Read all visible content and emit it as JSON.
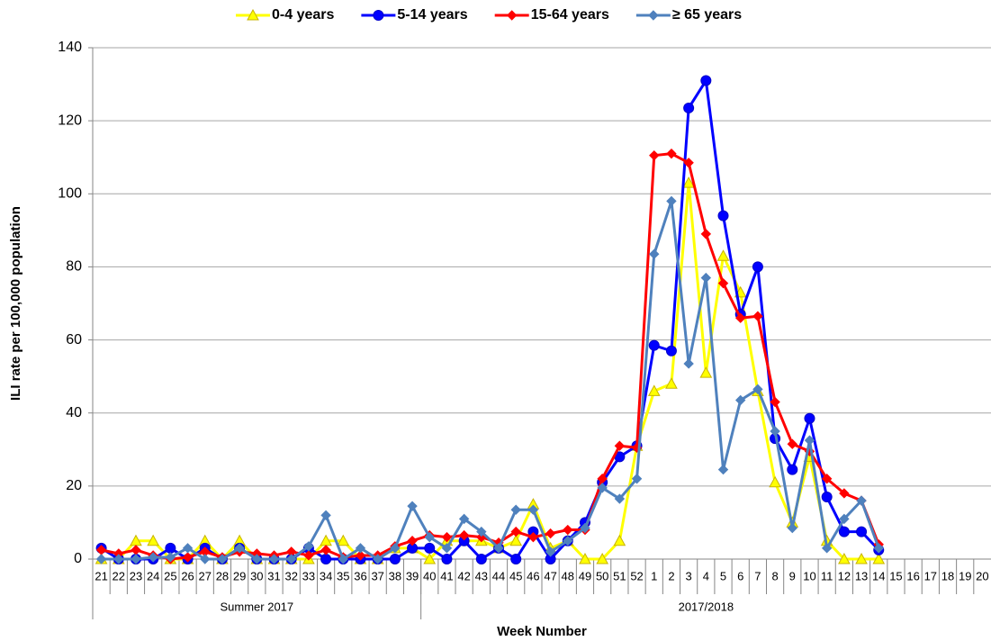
{
  "chart_data": {
    "type": "line",
    "y_label": "ILI rate per 100,000 population",
    "x_label": "Week Number",
    "category_groups": [
      {
        "label": "Summer 2017",
        "categories": [
          "21",
          "22",
          "23",
          "24",
          "25",
          "26",
          "27",
          "28",
          "29",
          "30",
          "31",
          "32",
          "33",
          "34",
          "35",
          "36",
          "37",
          "38",
          "39"
        ]
      },
      {
        "label": "2017/2018",
        "categories": [
          "40",
          "41",
          "42",
          "43",
          "44",
          "45",
          "46",
          "47",
          "48",
          "49",
          "50",
          "51",
          "52",
          "1",
          "2",
          "3",
          "4",
          "5",
          "6",
          "7",
          "8",
          "9",
          "10",
          "11",
          "12",
          "13",
          "14",
          "15",
          "16",
          "17",
          "18",
          "19",
          "20"
        ]
      }
    ],
    "ylim": [
      0,
      140
    ],
    "yticks": [
      0,
      20,
      40,
      60,
      80,
      100,
      120,
      140
    ],
    "grid": true,
    "legend": "top",
    "series": [
      {
        "name": "0-4 years",
        "color": "#ffff00",
        "marker_edge": "#c8b400",
        "marker": "triangle",
        "values": [
          0,
          0,
          5,
          5,
          0,
          0,
          5,
          0,
          5,
          0,
          0,
          0,
          0,
          5,
          5,
          0,
          0,
          3,
          3,
          0,
          5,
          5,
          5,
          3,
          5,
          15,
          3,
          5,
          0,
          0,
          5,
          31,
          46,
          48,
          103,
          51,
          83,
          73,
          46,
          21,
          10,
          28,
          5,
          0,
          0,
          0,
          null,
          null,
          null,
          null,
          null,
          null
        ]
      },
      {
        "name": "5-14 years",
        "color": "#0000ff",
        "marker_edge": "#0000cc",
        "marker": "circle",
        "values": [
          3,
          0,
          0,
          0,
          3,
          0,
          3,
          0,
          3,
          0,
          0,
          0,
          3,
          0,
          0,
          0,
          0,
          0,
          3,
          3,
          0,
          5,
          0,
          3,
          0,
          7.5,
          0,
          5,
          10,
          21,
          28,
          31,
          58.5,
          57,
          123.5,
          131,
          94,
          67,
          80,
          33,
          24.5,
          38.5,
          17,
          7.5,
          7.5,
          2.5,
          null,
          null,
          null,
          null,
          null,
          null
        ]
      },
      {
        "name": "15-64 years",
        "color": "#ff0000",
        "marker_edge": "#ff0000",
        "marker": "diamond",
        "values": [
          2.5,
          1.5,
          2.5,
          1,
          0,
          0.5,
          2,
          0.5,
          2,
          1.5,
          1,
          2,
          1,
          2.5,
          0.5,
          1,
          1,
          3.5,
          5,
          6.5,
          6,
          6.5,
          6,
          4.5,
          7.5,
          6,
          7,
          8,
          8,
          22,
          31,
          30.5,
          110.5,
          111,
          108.5,
          89,
          75.5,
          66,
          66.5,
          43,
          31.5,
          29.5,
          22,
          18,
          16,
          4,
          null,
          null,
          null,
          null,
          null,
          null
        ]
      },
      {
        "name": "≥ 65 years",
        "color": "#4f81bd",
        "marker_edge": "#4f81bd",
        "marker": "diamond",
        "values": [
          0,
          0,
          0,
          0.5,
          0.5,
          3,
          0,
          0,
          3,
          0,
          0,
          0,
          3.5,
          12,
          0,
          3,
          0,
          3,
          14.5,
          6,
          3,
          11,
          7.5,
          3,
          13.5,
          13.5,
          2,
          5,
          8.5,
          19.5,
          16.5,
          22,
          83.5,
          98,
          53.5,
          77,
          24.5,
          43.5,
          46.5,
          35,
          8.5,
          32.5,
          3,
          11,
          16,
          3,
          null,
          null,
          null,
          null,
          null,
          null
        ]
      }
    ]
  }
}
